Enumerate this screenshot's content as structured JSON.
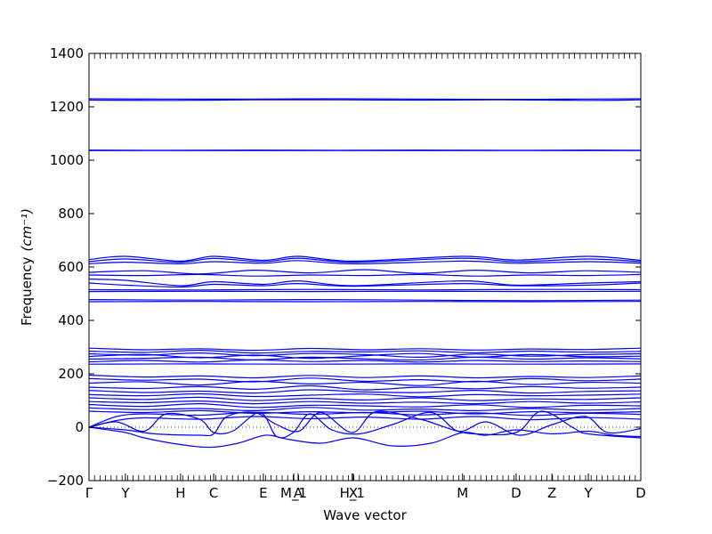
{
  "chart_data": {
    "type": "line",
    "title": "",
    "xlabel": "Wave vector",
    "ylabel": "Frequency",
    "ylabel_unit": "(cm⁻¹)",
    "ylim": [
      -200,
      1400
    ],
    "yticks": [
      -200,
      0,
      200,
      400,
      600,
      800,
      1000,
      1200,
      1400
    ],
    "grid": false,
    "legend": "none",
    "colors": {
      "bands": "#0000ff",
      "zero_line": "#000000",
      "axes": "#000000"
    },
    "x_ticks": [
      {
        "label": "Γ",
        "pos": 0.0
      },
      {
        "label": "Y",
        "pos": 0.066
      },
      {
        "label": "H",
        "pos": 0.166
      },
      {
        "label": "C",
        "pos": 0.226
      },
      {
        "label": "E",
        "pos": 0.316
      },
      {
        "label": "M_1",
        "pos": 0.371
      },
      {
        "label": "A",
        "pos": 0.379
      },
      {
        "label": "H_1",
        "pos": 0.477
      },
      {
        "label": "X",
        "pos": 0.479
      },
      {
        "label": "M",
        "pos": 0.677
      },
      {
        "label": "D",
        "pos": 0.774
      },
      {
        "label": "Z",
        "pos": 0.839
      },
      {
        "label": "Y",
        "pos": 0.905
      },
      {
        "label": "D",
        "pos": 1.0
      }
    ],
    "series": [
      {
        "x": [
          0,
          0.15,
          0.3,
          0.45,
          0.6,
          0.75,
          0.9,
          1
        ],
        "values": [
          1230,
          1229,
          1229,
          1230,
          1229,
          1228,
          1229,
          1230
        ]
      },
      {
        "x": [
          0,
          0.15,
          0.3,
          0.45,
          0.6,
          0.75,
          0.9,
          1
        ],
        "values": [
          1225,
          1224,
          1226,
          1226,
          1225,
          1226,
          1224,
          1226
        ]
      },
      {
        "x": [
          0,
          0.15,
          0.3,
          0.45,
          0.6,
          0.75,
          0.9,
          1
        ],
        "values": [
          1038,
          1037,
          1038,
          1037,
          1038,
          1037,
          1038,
          1037
        ]
      },
      {
        "x": [
          0,
          0.2,
          0.4,
          0.6,
          0.8,
          1
        ],
        "values": [
          1036,
          1036,
          1036,
          1036,
          1036,
          1036
        ]
      },
      {
        "x": [
          0,
          0.066,
          0.166,
          0.226,
          0.316,
          0.379,
          0.479,
          0.677,
          0.774,
          0.905,
          1
        ],
        "values": [
          628,
          640,
          622,
          640,
          625,
          640,
          622,
          640,
          626,
          640,
          625
        ]
      },
      {
        "x": [
          0,
          0.066,
          0.166,
          0.226,
          0.316,
          0.379,
          0.479,
          0.677,
          0.774,
          0.905,
          1
        ],
        "values": [
          620,
          630,
          618,
          632,
          620,
          633,
          618,
          633,
          620,
          630,
          620
        ]
      },
      {
        "x": [
          0,
          0.066,
          0.166,
          0.226,
          0.316,
          0.379,
          0.479,
          0.677,
          0.774,
          0.905,
          1
        ],
        "values": [
          612,
          618,
          612,
          620,
          614,
          624,
          612,
          622,
          614,
          620,
          614
        ]
      },
      {
        "x": [
          0,
          0.1,
          0.2,
          0.3,
          0.4,
          0.5,
          0.6,
          0.7,
          0.8,
          0.9,
          1
        ],
        "values": [
          580,
          586,
          574,
          588,
          578,
          590,
          576,
          588,
          578,
          586,
          580
        ]
      },
      {
        "x": [
          0,
          0.1,
          0.2,
          0.3,
          0.4,
          0.5,
          0.6,
          0.7,
          0.8,
          0.9,
          1
        ],
        "values": [
          570,
          568,
          572,
          566,
          570,
          568,
          572,
          566,
          570,
          568,
          572
        ]
      },
      {
        "x": [
          0,
          0.066,
          0.166,
          0.226,
          0.316,
          0.379,
          0.479,
          0.677,
          0.774,
          0.905,
          1
        ],
        "values": [
          555,
          550,
          530,
          545,
          535,
          548,
          530,
          548,
          532,
          540,
          545
        ]
      },
      {
        "x": [
          0,
          0.066,
          0.166,
          0.226,
          0.316,
          0.379,
          0.479,
          0.677,
          0.774,
          0.905,
          1
        ],
        "values": [
          540,
          532,
          525,
          535,
          530,
          538,
          528,
          538,
          530,
          532,
          540
        ]
      },
      {
        "x": [
          0,
          0.2,
          0.4,
          0.6,
          0.8,
          1
        ],
        "values": [
          515,
          514,
          516,
          514,
          516,
          515
        ]
      },
      {
        "x": [
          0,
          0.2,
          0.4,
          0.6,
          0.8,
          1
        ],
        "values": [
          508,
          509,
          508,
          509,
          508,
          509
        ]
      },
      {
        "x": [
          0,
          0.2,
          0.4,
          0.6,
          0.8,
          1
        ],
        "values": [
          478,
          476,
          478,
          476,
          474,
          476
        ]
      },
      {
        "x": [
          0,
          0.2,
          0.4,
          0.6,
          0.8,
          1
        ],
        "values": [
          470,
          471,
          470,
          471,
          470,
          471
        ]
      },
      {
        "x": [
          0,
          0.1,
          0.2,
          0.3,
          0.4,
          0.5,
          0.6,
          0.7,
          0.8,
          0.9,
          1
        ],
        "values": [
          296,
          290,
          294,
          288,
          295,
          290,
          294,
          289,
          293,
          291,
          296
        ]
      },
      {
        "x": [
          0,
          0.1,
          0.2,
          0.3,
          0.4,
          0.5,
          0.6,
          0.7,
          0.8,
          0.9,
          1
        ],
        "values": [
          285,
          280,
          288,
          278,
          284,
          282,
          286,
          279,
          285,
          281,
          284
        ]
      },
      {
        "x": [
          0,
          0.1,
          0.2,
          0.3,
          0.4,
          0.5,
          0.6,
          0.7,
          0.8,
          0.9,
          1
        ],
        "values": [
          275,
          270,
          278,
          268,
          276,
          272,
          262,
          274,
          266,
          272,
          275
        ]
      },
      {
        "x": [
          0,
          0.1,
          0.2,
          0.3,
          0.4,
          0.5,
          0.6,
          0.7,
          0.8,
          0.9,
          1
        ],
        "values": [
          265,
          272,
          260,
          270,
          258,
          268,
          276,
          262,
          272,
          264,
          266
        ]
      },
      {
        "x": [
          0,
          0.1,
          0.2,
          0.3,
          0.4,
          0.5,
          0.6,
          0.7,
          0.8,
          0.9,
          1
        ],
        "values": [
          255,
          258,
          262,
          252,
          262,
          256,
          252,
          262,
          255,
          260,
          256
        ]
      },
      {
        "x": [
          0,
          0.1,
          0.2,
          0.3,
          0.4,
          0.5,
          0.6,
          0.7,
          0.8,
          0.9,
          1
        ],
        "values": [
          245,
          250,
          244,
          252,
          246,
          250,
          244,
          250,
          246,
          248,
          246
        ]
      },
      {
        "x": [
          0,
          0.2,
          0.4,
          0.6,
          0.8,
          1
        ],
        "values": [
          236,
          237,
          236,
          237,
          236,
          237
        ]
      },
      {
        "x": [
          0,
          0.1,
          0.2,
          0.3,
          0.4,
          0.5,
          0.6,
          0.7,
          0.8,
          0.9,
          1
        ],
        "values": [
          195,
          188,
          192,
          185,
          194,
          186,
          192,
          185,
          190,
          186,
          192
        ]
      },
      {
        "x": [
          0,
          0.1,
          0.2,
          0.3,
          0.4,
          0.5,
          0.6,
          0.7,
          0.8,
          0.9,
          1
        ],
        "values": [
          182,
          176,
          180,
          170,
          184,
          172,
          178,
          170,
          182,
          174,
          180
        ]
      },
      {
        "x": [
          0,
          0.1,
          0.2,
          0.3,
          0.4,
          0.5,
          0.6,
          0.7,
          0.8,
          0.9,
          1
        ],
        "values": [
          165,
          170,
          158,
          172,
          162,
          168,
          156,
          172,
          160,
          168,
          165
        ]
      },
      {
        "x": [
          0,
          0.1,
          0.2,
          0.3,
          0.4,
          0.5,
          0.6,
          0.7,
          0.8,
          0.9,
          1
        ],
        "values": [
          150,
          145,
          152,
          142,
          155,
          140,
          150,
          144,
          152,
          146,
          150
        ]
      },
      {
        "x": [
          0,
          0.1,
          0.2,
          0.3,
          0.4,
          0.5,
          0.6,
          0.7,
          0.8,
          0.9,
          1
        ],
        "values": [
          138,
          130,
          135,
          128,
          140,
          132,
          130,
          138,
          128,
          134,
          136
        ]
      },
      {
        "x": [
          0,
          0.1,
          0.2,
          0.3,
          0.4,
          0.5,
          0.6,
          0.7,
          0.8,
          0.9,
          1
        ],
        "values": [
          122,
          118,
          125,
          115,
          120,
          124,
          114,
          122,
          118,
          120,
          124
        ]
      },
      {
        "x": [
          0,
          0.1,
          0.2,
          0.3,
          0.4,
          0.5,
          0.6,
          0.7,
          0.8,
          0.9,
          1
        ],
        "values": [
          110,
          104,
          112,
          100,
          108,
          102,
          110,
          100,
          106,
          104,
          110
        ]
      },
      {
        "x": [
          0,
          0.1,
          0.2,
          0.3,
          0.4,
          0.5,
          0.6,
          0.7,
          0.8,
          0.9,
          1
        ],
        "values": [
          96,
          92,
          98,
          88,
          96,
          90,
          94,
          88,
          96,
          90,
          95
        ]
      },
      {
        "x": [
          0,
          0.1,
          0.2,
          0.3,
          0.4,
          0.5,
          0.6,
          0.7,
          0.8,
          0.9,
          1
        ],
        "values": [
          85,
          78,
          88,
          74,
          82,
          80,
          76,
          84,
          74,
          82,
          80
        ]
      },
      {
        "x": [
          0,
          0.1,
          0.2,
          0.3,
          0.4,
          0.5,
          0.6,
          0.7,
          0.8,
          0.9,
          1
        ],
        "values": [
          72,
          66,
          70,
          62,
          74,
          64,
          68,
          62,
          70,
          64,
          70
        ]
      },
      {
        "x": [
          0,
          0.1,
          0.2,
          0.3,
          0.4,
          0.5,
          0.6,
          0.7,
          0.8,
          0.9,
          1
        ],
        "values": [
          60,
          55,
          62,
          52,
          58,
          54,
          60,
          50,
          58,
          54,
          58
        ]
      },
      {
        "x": [
          0,
          0.05,
          0.1,
          0.2,
          0.3,
          0.4,
          0.5,
          0.6,
          0.7,
          0.8,
          0.9,
          1
        ],
        "values": [
          0,
          40,
          50,
          45,
          56,
          48,
          55,
          46,
          54,
          44,
          52,
          48
        ]
      },
      {
        "x": [
          0,
          0.05,
          0.1,
          0.2,
          0.3,
          0.4,
          0.5,
          0.6,
          0.7,
          0.8,
          0.9,
          1
        ],
        "values": [
          0,
          25,
          35,
          30,
          40,
          32,
          38,
          30,
          40,
          28,
          36,
          30
        ]
      },
      {
        "x": [
          0,
          0.066,
          0.1,
          0.166,
          0.22,
          0.27,
          0.32,
          0.36,
          0.42,
          0.48,
          0.55,
          0.62,
          0.677,
          0.72,
          0.774,
          0.84,
          0.905,
          0.95,
          1
        ],
        "values": [
          0,
          -20,
          -40,
          -65,
          -75,
          -60,
          -30,
          -45,
          -60,
          -40,
          -70,
          -60,
          -20,
          -30,
          -10,
          -25,
          -15,
          -30,
          -35
        ]
      },
      {
        "x": [
          0,
          0.066,
          0.12,
          0.2,
          0.226,
          0.25,
          0.3,
          0.34,
          0.38,
          0.42,
          0.477,
          0.52,
          0.6,
          0.66,
          0.7,
          0.774,
          0.82,
          0.88,
          0.905,
          1
        ],
        "values": [
          0,
          -10,
          -25,
          -30,
          -25,
          40,
          55,
          10,
          -15,
          55,
          -20,
          58,
          30,
          -10,
          -25,
          -20,
          60,
          -5,
          -25,
          -40
        ]
      },
      {
        "x": [
          0,
          0.05,
          0.1,
          0.14,
          0.2,
          0.226,
          0.26,
          0.31,
          0.34,
          0.37,
          0.4,
          0.44,
          0.49,
          0.55,
          0.62,
          0.67,
          0.72,
          0.78,
          0.84,
          0.9,
          0.94,
          1
        ],
        "values": [
          0,
          20,
          -15,
          50,
          30,
          -20,
          -15,
          55,
          -35,
          -20,
          50,
          -10,
          -25,
          10,
          55,
          -15,
          20,
          -30,
          10,
          40,
          -20,
          -5
        ]
      }
    ]
  }
}
